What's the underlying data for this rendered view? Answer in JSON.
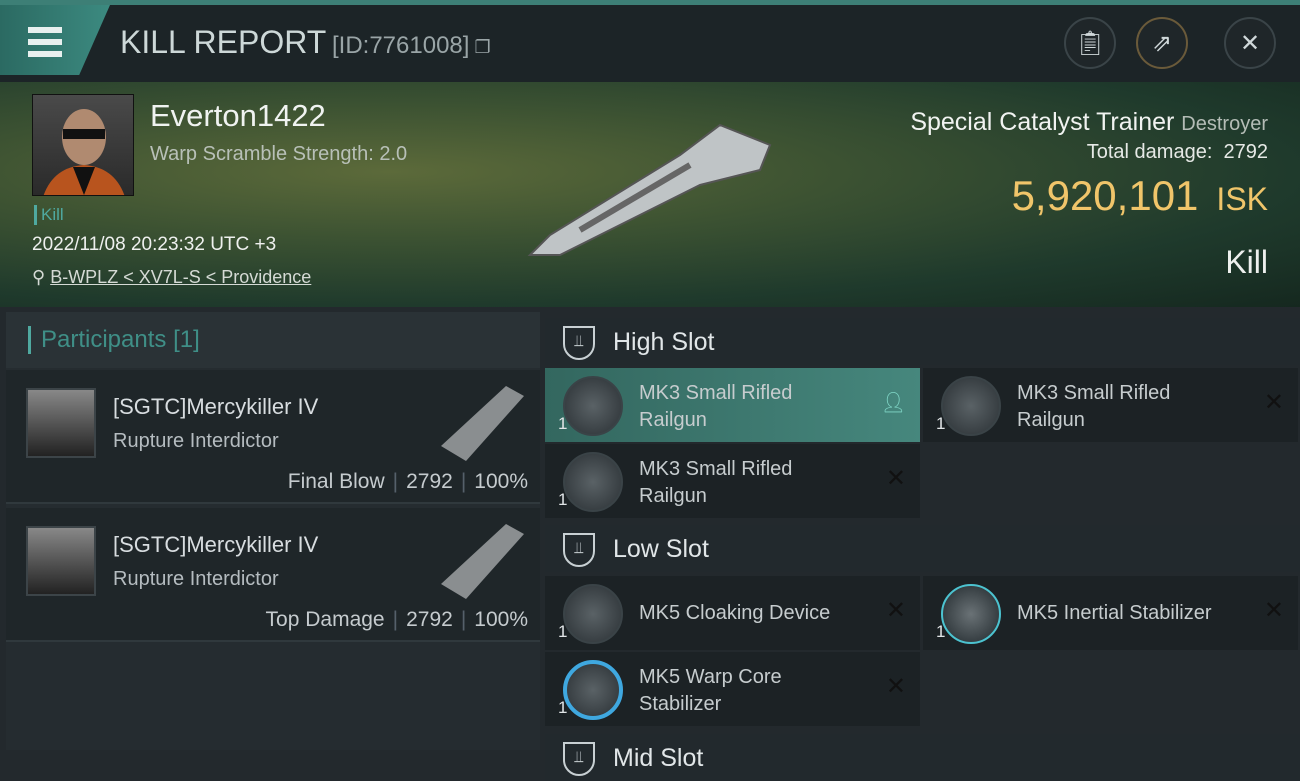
{
  "header": {
    "title": "KILL REPORT",
    "report_id": "[ID:7761008]",
    "icons": [
      "menu-icon",
      "copy-icon",
      "clipboard-icon",
      "share-icon",
      "close-icon"
    ]
  },
  "victim": {
    "name": "Everton1422",
    "warp_scramble": "Warp Scramble Strength: 2.0",
    "kill_tag": "Kill",
    "datetime": "2022/11/08 20:23:32 UTC +3",
    "location": "B-WPLZ < XV7L-S < Providence",
    "ship_name": "Special Catalyst Trainer",
    "ship_class": "Destroyer",
    "total_damage_label": "Total damage:",
    "total_damage": "2792",
    "isk_value": "5,920,101",
    "isk_unit": "ISK",
    "result": "Kill"
  },
  "participants": {
    "title": "Participants",
    "count": "[1]",
    "rows": [
      {
        "name": "[SGTC]Mercykiller IV",
        "ship": "Rupture Interdictor",
        "role": "Final Blow",
        "damage": "2792",
        "percent": "100%"
      },
      {
        "name": "[SGTC]Mercykiller IV",
        "ship": "Rupture Interdictor",
        "role": "Top Damage",
        "damage": "2792",
        "percent": "100%"
      }
    ]
  },
  "slots": {
    "high": {
      "title": "High Slot",
      "modules": [
        {
          "name": "MK3 Small Rifled Railgun",
          "qty": "1",
          "status": "pilot"
        },
        {
          "name": "MK3 Small Rifled Railgun",
          "qty": "1",
          "status": "destroyed"
        },
        {
          "name": "MK3 Small Rifled Railgun",
          "qty": "1",
          "status": "destroyed"
        }
      ]
    },
    "low": {
      "title": "Low Slot",
      "modules": [
        {
          "name": "MK5 Cloaking Device",
          "qty": "1",
          "status": "destroyed"
        },
        {
          "name": "MK5 Inertial Stabilizer",
          "qty": "1",
          "status": "destroyed"
        },
        {
          "name": "MK5 Warp Core Stabilizer",
          "qty": "1",
          "status": "destroyed"
        }
      ]
    },
    "mid": {
      "title": "Mid Slot"
    }
  },
  "colors": {
    "accent": "#4fa9a0",
    "isk": "#f0c56a",
    "selected": "#46877d"
  }
}
